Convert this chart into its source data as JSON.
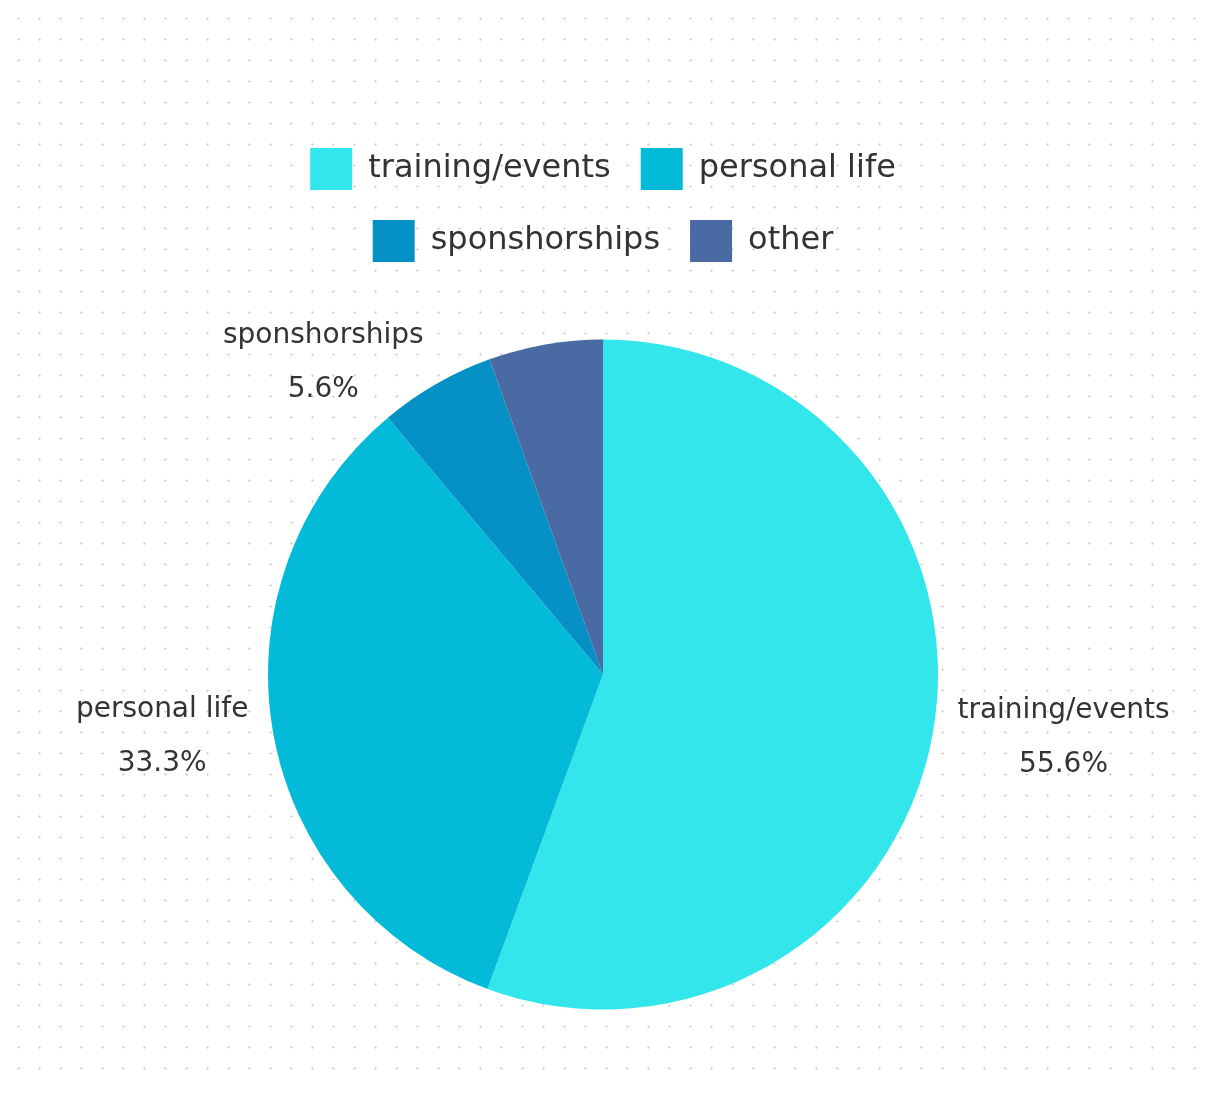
{
  "chart_data": {
    "type": "pie",
    "categories": [
      "training/events",
      "personal life",
      "sponshorships",
      "other"
    ],
    "values": [
      55.6,
      33.3,
      5.6,
      5.5
    ],
    "value_labels": [
      "55.6%",
      "33.3%",
      "5.6%",
      null
    ],
    "colors": [
      "#33e6ec",
      "#03bad8",
      "#0590c6",
      "#4a6aa3"
    ],
    "legend": "top"
  }
}
